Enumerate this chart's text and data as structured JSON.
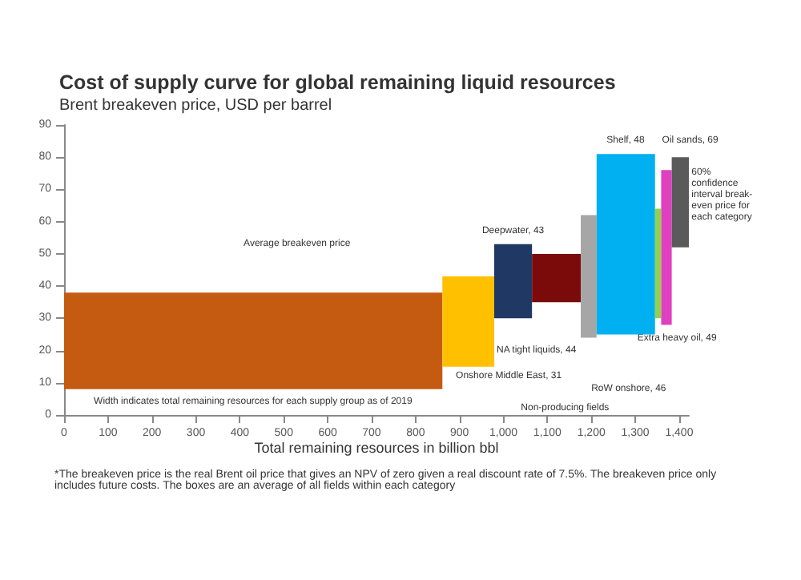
{
  "chart_data": {
    "type": "histogram",
    "title": "Cost of supply curve for global remaining liquid resources",
    "subtitle": "Brent breakeven price, USD per barrel",
    "xlabel": "Total remaining resources in billion bbl",
    "bins": [
      0,
      861,
      979,
      1065,
      1176,
      1212,
      1345,
      1359,
      1383,
      1422
    ],
    "base": [
      8,
      15,
      30,
      35,
      24,
      25,
      30,
      28,
      52
    ],
    "values": [
      30,
      28,
      23,
      15,
      38,
      56,
      34,
      48,
      28
    ],
    "colors": [
      "#c55a11",
      "#ffc000",
      "#1f3864",
      "#7b0a0a",
      "#a6a6a6",
      "#00b0f0",
      "#92d050",
      "#e040c0",
      "#5a5a5a"
    ],
    "xlim": [
      0,
      1422
    ],
    "ylim": [
      0,
      90
    ],
    "xticks": [
      0,
      100,
      200,
      300,
      400,
      500,
      600,
      700,
      800,
      900,
      {
        "value": 1000,
        "label": "1,000"
      },
      {
        "value": 1100,
        "label": "1,100"
      },
      {
        "value": 1200,
        "label": "1,200"
      },
      {
        "value": 1300,
        "label": "1,300"
      },
      {
        "value": 1400,
        "label": "1,400"
      }
    ],
    "yticks": [
      0,
      10,
      20,
      30,
      40,
      50,
      60,
      70,
      80,
      90
    ],
    "grid": false,
    "annotations": [
      "Average breakeven price",
      "Width indicates total remaining resources for each supply group as of 2019",
      "Non-producing fields",
      "Onshore Middle East, 31",
      "Deepwater, 43",
      "NA tight liquids, 44",
      "RoW onshore, 46",
      "Shelf, 48",
      "Extra heavy oil, 49",
      "Oil sands, 69",
      "60%\nconfidence\ninterval break-\neven price for\neach category",
      "*The breakeven price is the real Brent oil price that gives an NPV of zero given a real discount rate of 7.5%. The breakeven price only includes future costs. The boxes are an average of all fields within each category"
    ]
  }
}
